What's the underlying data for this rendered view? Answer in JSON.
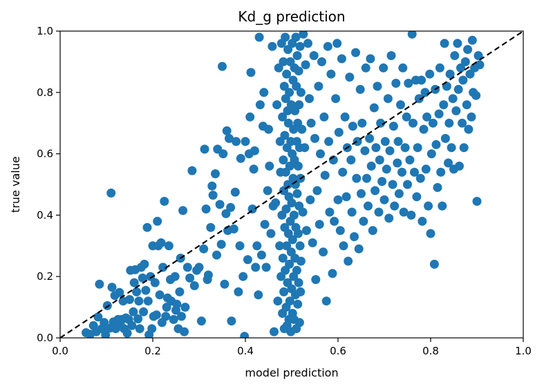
{
  "chart_data": {
    "type": "scatter",
    "title": "Kd_g prediction",
    "xlabel": "model prediction",
    "ylabel": "true value",
    "xlim": [
      0.0,
      1.0
    ],
    "ylim": [
      0.0,
      1.0
    ],
    "xticks": [
      "0.0",
      "0.2",
      "0.4",
      "0.6",
      "0.8",
      "1.0"
    ],
    "yticks": [
      "0.0",
      "0.2",
      "0.4",
      "0.6",
      "0.8",
      "1.0"
    ],
    "grid": false,
    "legend": "none",
    "reference_line": {
      "style": "dashed",
      "color": "#000000",
      "from": [
        0.0,
        0.0
      ],
      "to": [
        1.0,
        1.0
      ]
    },
    "marker_color": "#1f77b4",
    "points": [
      [
        0.056,
        0.017
      ],
      [
        0.065,
        0.012
      ],
      [
        0.072,
        0.04
      ],
      [
        0.078,
        0.02
      ],
      [
        0.082,
        0.068
      ],
      [
        0.085,
        0.175
      ],
      [
        0.09,
        0.03
      ],
      [
        0.095,
        0.05
      ],
      [
        0.098,
        0.01
      ],
      [
        0.102,
        0.105
      ],
      [
        0.108,
        0.032
      ],
      [
        0.11,
        0.472
      ],
      [
        0.112,
        0.165
      ],
      [
        0.115,
        0.052
      ],
      [
        0.118,
        0.138
      ],
      [
        0.12,
        0.03
      ],
      [
        0.125,
        0.06
      ],
      [
        0.128,
        0.148
      ],
      [
        0.13,
        0.045
      ],
      [
        0.133,
        0.06
      ],
      [
        0.136,
        0.12
      ],
      [
        0.138,
        0.03
      ],
      [
        0.142,
        0.065
      ],
      [
        0.145,
        0.015
      ],
      [
        0.148,
        0.06
      ],
      [
        0.15,
        0.125
      ],
      [
        0.152,
        0.22
      ],
      [
        0.155,
        0.04
      ],
      [
        0.158,
        0.085
      ],
      [
        0.16,
        0.18
      ],
      [
        0.162,
        0.222
      ],
      [
        0.165,
        0.15
      ],
      [
        0.168,
        0.062
      ],
      [
        0.17,
        0.12
      ],
      [
        0.172,
        0.03
      ],
      [
        0.175,
        0.23
      ],
      [
        0.178,
        0.195
      ],
      [
        0.18,
        0.085
      ],
      [
        0.182,
        0.24
      ],
      [
        0.185,
        0.155
      ],
      [
        0.188,
        0.36
      ],
      [
        0.19,
        0.12
      ],
      [
        0.192,
        0.01
      ],
      [
        0.195,
        0.2
      ],
      [
        0.198,
        0.03
      ],
      [
        0.2,
        0.3
      ],
      [
        0.202,
        0.07
      ],
      [
        0.205,
        0.18
      ],
      [
        0.208,
        0.075
      ],
      [
        0.21,
        0.38
      ],
      [
        0.212,
        0.3
      ],
      [
        0.215,
        0.14
      ],
      [
        0.218,
        0.31
      ],
      [
        0.22,
        0.05
      ],
      [
        0.222,
        0.23
      ],
      [
        0.225,
        0.445
      ],
      [
        0.228,
        0.07
      ],
      [
        0.23,
        0.1
      ],
      [
        0.232,
        0.13
      ],
      [
        0.235,
        0.3
      ],
      [
        0.238,
        0.19
      ],
      [
        0.24,
        0.12
      ],
      [
        0.245,
        0.06
      ],
      [
        0.248,
        0.2
      ],
      [
        0.25,
        0.09
      ],
      [
        0.252,
        0.11
      ],
      [
        0.255,
        0.03
      ],
      [
        0.258,
        0.15
      ],
      [
        0.26,
        0.26
      ],
      [
        0.262,
        0.07
      ],
      [
        0.265,
        0.415
      ],
      [
        0.268,
        0.02
      ],
      [
        0.27,
        0.1
      ],
      [
        0.275,
        0.23
      ],
      [
        0.28,
        0.195
      ],
      [
        0.285,
        0.545
      ],
      [
        0.29,
        0.17
      ],
      [
        0.295,
        0.22
      ],
      [
        0.3,
        0.23
      ],
      [
        0.305,
        0.055
      ],
      [
        0.31,
        0.29
      ],
      [
        0.312,
        0.615
      ],
      [
        0.315,
        0.42
      ],
      [
        0.318,
        0.19
      ],
      [
        0.32,
        0.205
      ],
      [
        0.325,
        0.36
      ],
      [
        0.328,
        0.495
      ],
      [
        0.33,
        0.465
      ],
      [
        0.335,
        0.535
      ],
      [
        0.338,
        0.27
      ],
      [
        0.34,
        0.615
      ],
      [
        0.345,
        0.435
      ],
      [
        0.348,
        0.305
      ],
      [
        0.35,
        0.885
      ],
      [
        0.352,
        0.6
      ],
      [
        0.355,
        0.175
      ],
      [
        0.358,
        0.405
      ],
      [
        0.36,
        0.675
      ],
      [
        0.362,
        0.35
      ],
      [
        0.365,
        0.65
      ],
      [
        0.368,
        0.425
      ],
      [
        0.37,
        0.055
      ],
      [
        0.375,
        0.355
      ],
      [
        0.378,
        0.475
      ],
      [
        0.38,
        0.64
      ],
      [
        0.385,
        0.15
      ],
      [
        0.388,
        0.3
      ],
      [
        0.39,
        0.585
      ],
      [
        0.395,
        0.2
      ],
      [
        0.398,
        0.005
      ],
      [
        0.4,
        0.64
      ],
      [
        0.405,
        0.255
      ],
      [
        0.408,
        0.6
      ],
      [
        0.41,
        0.72
      ],
      [
        0.412,
        0.865
      ],
      [
        0.415,
        0.42
      ],
      [
        0.418,
        0.55
      ],
      [
        0.42,
        0.61
      ],
      [
        0.422,
        0.23
      ],
      [
        0.425,
        0.3
      ],
      [
        0.428,
        0.14
      ],
      [
        0.43,
        0.98
      ],
      [
        0.432,
        0.76
      ],
      [
        0.435,
        0.27
      ],
      [
        0.438,
        0.69
      ],
      [
        0.44,
        0.8
      ],
      [
        0.442,
        0.37
      ],
      [
        0.445,
        0.23
      ],
      [
        0.448,
        0.48
      ],
      [
        0.45,
        0.68
      ],
      [
        0.452,
        0.56
      ],
      [
        0.455,
        0.34
      ],
      [
        0.458,
        0.95
      ],
      [
        0.46,
        0.43
      ],
      [
        0.462,
        0.02
      ],
      [
        0.465,
        0.44
      ],
      [
        0.468,
        0.76
      ],
      [
        0.47,
        0.12
      ],
      [
        0.472,
        0.88
      ],
      [
        0.474,
        0.3
      ],
      [
        0.475,
        0.64
      ],
      [
        0.476,
        0.54
      ],
      [
        0.477,
        0.2
      ],
      [
        0.478,
        0.96
      ],
      [
        0.479,
        0.4
      ],
      [
        0.48,
        0.08
      ],
      [
        0.48,
        0.72
      ],
      [
        0.481,
        0.26
      ],
      [
        0.482,
        0.58
      ],
      [
        0.482,
        0.9
      ],
      [
        0.483,
        0.15
      ],
      [
        0.483,
        0.48
      ],
      [
        0.484,
        0.82
      ],
      [
        0.484,
        0.03
      ],
      [
        0.485,
        0.36
      ],
      [
        0.485,
        0.66
      ],
      [
        0.486,
        0.98
      ],
      [
        0.486,
        0.22
      ],
      [
        0.487,
        0.54
      ],
      [
        0.487,
        0.78
      ],
      [
        0.488,
        0.1
      ],
      [
        0.488,
        0.42
      ],
      [
        0.489,
        0.86
      ],
      [
        0.489,
        0.3
      ],
      [
        0.49,
        0.62
      ],
      [
        0.49,
        0.04
      ],
      [
        0.491,
        0.74
      ],
      [
        0.491,
        0.18
      ],
      [
        0.492,
        0.5
      ],
      [
        0.492,
        0.94
      ],
      [
        0.493,
        0.34
      ],
      [
        0.493,
        0.7
      ],
      [
        0.494,
        0.06
      ],
      [
        0.494,
        0.46
      ],
      [
        0.495,
        0.8
      ],
      [
        0.495,
        0.24
      ],
      [
        0.496,
        0.56
      ],
      [
        0.496,
        0.12
      ],
      [
        0.497,
        0.9
      ],
      [
        0.497,
        0.38
      ],
      [
        0.498,
        0.64
      ],
      [
        0.498,
        0.02
      ],
      [
        0.499,
        0.28
      ],
      [
        0.499,
        0.76
      ],
      [
        0.5,
        0.44
      ],
      [
        0.5,
        0.16
      ],
      [
        0.501,
        0.6
      ],
      [
        0.501,
        0.96
      ],
      [
        0.502,
        0.32
      ],
      [
        0.502,
        0.08
      ],
      [
        0.503,
        0.52
      ],
      [
        0.503,
        0.84
      ],
      [
        0.504,
        0.2
      ],
      [
        0.504,
        0.68
      ],
      [
        0.505,
        0.4
      ],
      [
        0.505,
        0.06
      ],
      [
        0.506,
        0.58
      ],
      [
        0.506,
        0.88
      ],
      [
        0.507,
        0.26
      ],
      [
        0.507,
        0.74
      ],
      [
        0.508,
        0.14
      ],
      [
        0.508,
        0.5
      ],
      [
        0.509,
        0.98
      ],
      [
        0.509,
        0.36
      ],
      [
        0.51,
        0.82
      ],
      [
        0.51,
        0.03
      ],
      [
        0.511,
        0.64
      ],
      [
        0.511,
        0.22
      ],
      [
        0.512,
        0.47
      ],
      [
        0.512,
        0.92
      ],
      [
        0.513,
        0.11
      ],
      [
        0.513,
        0.7
      ],
      [
        0.514,
        0.34
      ],
      [
        0.514,
        0.56
      ],
      [
        0.515,
        0.87
      ],
      [
        0.515,
        0.18
      ],
      [
        0.516,
        0.43
      ],
      [
        0.516,
        0.76
      ],
      [
        0.517,
        0.05
      ],
      [
        0.517,
        0.62
      ],
      [
        0.518,
        0.3
      ],
      [
        0.518,
        0.95
      ],
      [
        0.519,
        0.15
      ],
      [
        0.519,
        0.52
      ],
      [
        0.52,
        0.8
      ],
      [
        0.52,
        0.25
      ],
      [
        0.522,
        0.68
      ],
      [
        0.524,
        0.41
      ],
      [
        0.525,
        0.99
      ],
      [
        0.528,
        0.62
      ],
      [
        0.53,
        0.89
      ],
      [
        0.532,
        0.35
      ],
      [
        0.535,
        0.96
      ],
      [
        0.538,
        0.78
      ],
      [
        0.54,
        0.45
      ],
      [
        0.542,
        0.7
      ],
      [
        0.545,
        0.31
      ],
      [
        0.548,
        0.92
      ],
      [
        0.55,
        0.65
      ],
      [
        0.552,
        0.19
      ],
      [
        0.555,
        0.48
      ],
      [
        0.558,
        0.82
      ],
      [
        0.56,
        0.37
      ],
      [
        0.562,
        0.6
      ],
      [
        0.565,
        0.9
      ],
      [
        0.568,
        0.28
      ],
      [
        0.57,
        0.72
      ],
      [
        0.572,
        0.53
      ],
      [
        0.575,
        0.12
      ],
      [
        0.578,
        0.95
      ],
      [
        0.58,
        0.64
      ],
      [
        0.582,
        0.41
      ],
      [
        0.585,
        0.86
      ],
      [
        0.588,
        0.21
      ],
      [
        0.59,
        0.58
      ],
      [
        0.592,
        0.38
      ],
      [
        0.595,
        0.78
      ],
      [
        0.598,
        0.96
      ],
      [
        0.6,
        0.45
      ],
      [
        0.602,
        0.67
      ],
      [
        0.605,
        0.35
      ],
      [
        0.608,
        0.91
      ],
      [
        0.61,
        0.54
      ],
      [
        0.612,
        0.3
      ],
      [
        0.615,
        0.72
      ],
      [
        0.618,
        0.46
      ],
      [
        0.62,
        0.62
      ],
      [
        0.622,
        0.25
      ],
      [
        0.625,
        0.85
      ],
      [
        0.628,
        0.58
      ],
      [
        0.63,
        0.41
      ],
      [
        0.632,
        0.69
      ],
      [
        0.635,
        0.33
      ],
      [
        0.638,
        0.93
      ],
      [
        0.64,
        0.52
      ],
      [
        0.642,
        0.64
      ],
      [
        0.645,
        0.29
      ],
      [
        0.648,
        0.81
      ],
      [
        0.65,
        0.47
      ],
      [
        0.652,
        0.7
      ],
      [
        0.655,
        0.38
      ],
      [
        0.658,
        0.61
      ],
      [
        0.66,
        0.88
      ],
      [
        0.662,
        0.52
      ],
      [
        0.665,
        0.43
      ],
      [
        0.668,
        0.65
      ],
      [
        0.67,
        0.91
      ],
      [
        0.672,
        0.56
      ],
      [
        0.675,
        0.35
      ],
      [
        0.678,
        0.75
      ],
      [
        0.68,
        0.48
      ],
      [
        0.682,
        0.62
      ],
      [
        0.685,
        0.82
      ],
      [
        0.688,
        0.41
      ],
      [
        0.69,
        0.58
      ],
      [
        0.692,
        0.7
      ],
      [
        0.695,
        0.51
      ],
      [
        0.698,
        0.88
      ],
      [
        0.7,
        0.45
      ],
      [
        0.702,
        0.64
      ],
      [
        0.705,
        0.55
      ],
      [
        0.708,
        0.78
      ],
      [
        0.71,
        0.39
      ],
      [
        0.712,
        0.61
      ],
      [
        0.715,
        0.92
      ],
      [
        0.718,
        0.5
      ],
      [
        0.72,
        0.69
      ],
      [
        0.722,
        0.43
      ],
      [
        0.725,
        0.83
      ],
      [
        0.728,
        0.57
      ],
      [
        0.73,
        0.64
      ],
      [
        0.732,
        0.47
      ],
      [
        0.735,
        0.76
      ],
      [
        0.738,
        0.54
      ],
      [
        0.74,
        0.88
      ],
      [
        0.742,
        0.41
      ],
      [
        0.745,
        0.62
      ],
      [
        0.748,
        0.72
      ],
      [
        0.75,
        0.5
      ],
      [
        0.752,
        0.83
      ],
      [
        0.755,
        0.58
      ],
      [
        0.758,
        0.4
      ],
      [
        0.76,
        0.99
      ],
      [
        0.762,
        0.7
      ],
      [
        0.765,
        0.54
      ],
      [
        0.768,
        0.84
      ],
      [
        0.77,
        0.46
      ],
      [
        0.772,
        0.62
      ],
      [
        0.775,
        0.78
      ],
      [
        0.778,
        0.52
      ],
      [
        0.78,
        0.84
      ],
      [
        0.782,
        0.38
      ],
      [
        0.785,
        0.68
      ],
      [
        0.788,
        0.8
      ],
      [
        0.79,
        0.55
      ],
      [
        0.792,
        0.72
      ],
      [
        0.795,
        0.43
      ],
      [
        0.798,
        0.86
      ],
      [
        0.8,
        0.34
      ],
      [
        0.802,
        0.6
      ],
      [
        0.805,
        0.7
      ],
      [
        0.808,
        0.24
      ],
      [
        0.81,
        0.81
      ],
      [
        0.812,
        0.63
      ],
      [
        0.815,
        0.49
      ],
      [
        0.818,
        0.73
      ],
      [
        0.82,
        0.88
      ],
      [
        0.822,
        0.54
      ],
      [
        0.825,
        0.43
      ],
      [
        0.828,
        0.76
      ],
      [
        0.83,
        0.96
      ],
      [
        0.832,
        0.65
      ],
      [
        0.835,
        0.82
      ],
      [
        0.838,
        0.57
      ],
      [
        0.84,
        0.7
      ],
      [
        0.842,
        0.86
      ],
      [
        0.845,
        0.62
      ],
      [
        0.848,
        0.78
      ],
      [
        0.85,
        0.55
      ],
      [
        0.852,
        0.92
      ],
      [
        0.855,
        0.74
      ],
      [
        0.858,
        0.96
      ],
      [
        0.86,
        0.81
      ],
      [
        0.862,
        0.56
      ],
      [
        0.865,
        0.88
      ],
      [
        0.868,
        0.7
      ],
      [
        0.87,
        0.84
      ],
      [
        0.872,
        0.62
      ],
      [
        0.875,
        0.9
      ],
      [
        0.878,
        0.76
      ],
      [
        0.88,
        0.94
      ],
      [
        0.882,
        0.68
      ],
      [
        0.885,
        0.86
      ],
      [
        0.888,
        0.72
      ],
      [
        0.89,
        0.97
      ],
      [
        0.892,
        0.8
      ],
      [
        0.895,
        0.88
      ],
      [
        0.898,
        0.79
      ],
      [
        0.9,
        0.445
      ],
      [
        0.903,
        0.92
      ],
      [
        0.906,
        0.89
      ]
    ]
  }
}
